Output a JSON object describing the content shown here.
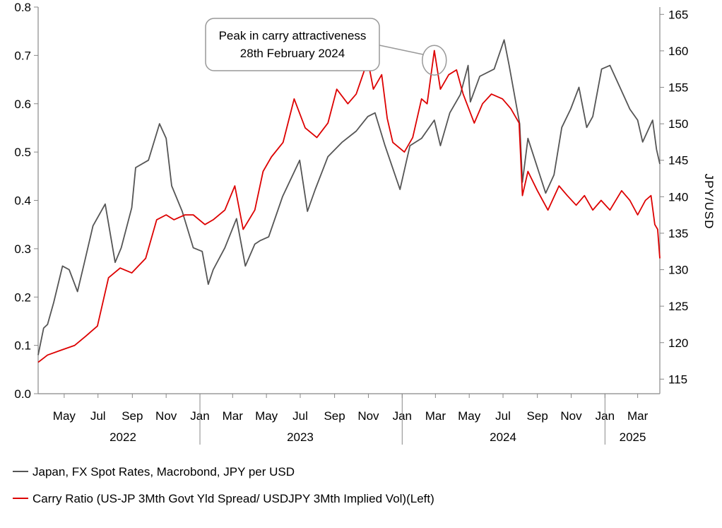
{
  "chart_data": {
    "type": "line",
    "title": "",
    "left_axis": {
      "label": "",
      "range": [
        0.0,
        0.8
      ],
      "ticks": [
        "0.0",
        "0.1",
        "0.2",
        "0.3",
        "0.4",
        "0.5",
        "0.6",
        "0.7",
        "0.8"
      ]
    },
    "right_axis": {
      "label": "JPY/USD",
      "range": [
        113,
        166
      ],
      "ticks": [
        "115",
        "120",
        "125",
        "130",
        "135",
        "140",
        "145",
        "150",
        "155",
        "160",
        "165"
      ]
    },
    "x_axis": {
      "start": "2022-03-15",
      "end": "2025-04-10",
      "month_ticks": [
        {
          "date": "2022-05-01",
          "label": "May"
        },
        {
          "date": "2022-07-01",
          "label": "Jul"
        },
        {
          "date": "2022-09-01",
          "label": "Sep"
        },
        {
          "date": "2022-11-01",
          "label": "Nov"
        },
        {
          "date": "2023-01-01",
          "label": "Jan"
        },
        {
          "date": "2023-03-01",
          "label": "Mar"
        },
        {
          "date": "2023-05-01",
          "label": "May"
        },
        {
          "date": "2023-07-01",
          "label": "Jul"
        },
        {
          "date": "2023-09-01",
          "label": "Sep"
        },
        {
          "date": "2023-11-01",
          "label": "Nov"
        },
        {
          "date": "2024-01-01",
          "label": "Jan"
        },
        {
          "date": "2024-03-01",
          "label": "Mar"
        },
        {
          "date": "2024-05-01",
          "label": "May"
        },
        {
          "date": "2024-07-01",
          "label": "Jul"
        },
        {
          "date": "2024-09-01",
          "label": "Sep"
        },
        {
          "date": "2024-11-01",
          "label": "Nov"
        },
        {
          "date": "2025-01-01",
          "label": "Jan"
        },
        {
          "date": "2025-03-01",
          "label": "Mar"
        }
      ],
      "year_labels": [
        {
          "date": "2022-08-15",
          "label": "2022"
        },
        {
          "date": "2023-07-01",
          "label": "2023"
        },
        {
          "date": "2024-07-01",
          "label": "2024"
        },
        {
          "date": "2025-02-20",
          "label": "2025"
        }
      ],
      "year_separators": [
        "2023-01-01",
        "2024-01-01",
        "2025-01-01"
      ]
    },
    "series": [
      {
        "name": "Japan, FX Spot Rates, Macrobond, JPY per USD",
        "axis": "right",
        "color": "#555555",
        "points": [
          [
            "2022-03-15",
            118.3
          ],
          [
            "2022-03-25",
            122.0
          ],
          [
            "2022-04-01",
            122.5
          ],
          [
            "2022-04-12",
            125.5
          ],
          [
            "2022-04-28",
            130.5
          ],
          [
            "2022-05-10",
            130.0
          ],
          [
            "2022-05-25",
            127.0
          ],
          [
            "2022-06-05",
            130.5
          ],
          [
            "2022-06-22",
            136.0
          ],
          [
            "2022-07-14",
            139.0
          ],
          [
            "2022-08-01",
            131.0
          ],
          [
            "2022-08-12",
            133.0
          ],
          [
            "2022-08-31",
            138.5
          ],
          [
            "2022-09-07",
            144.0
          ],
          [
            "2022-09-30",
            145.0
          ],
          [
            "2022-10-20",
            150.0
          ],
          [
            "2022-11-01",
            148.0
          ],
          [
            "2022-11-11",
            141.5
          ],
          [
            "2022-11-30",
            138.0
          ],
          [
            "2022-12-20",
            133.0
          ],
          [
            "2023-01-05",
            132.5
          ],
          [
            "2023-01-16",
            128.0
          ],
          [
            "2023-01-25",
            130.0
          ],
          [
            "2023-02-15",
            133.0
          ],
          [
            "2023-03-08",
            137.0
          ],
          [
            "2023-03-24",
            130.5
          ],
          [
            "2023-04-10",
            133.5
          ],
          [
            "2023-04-20",
            134.0
          ],
          [
            "2023-05-05",
            134.5
          ],
          [
            "2023-05-30",
            140.0
          ],
          [
            "2023-06-30",
            145.0
          ],
          [
            "2023-07-14",
            138.0
          ],
          [
            "2023-07-28",
            141.0
          ],
          [
            "2023-08-20",
            145.5
          ],
          [
            "2023-09-15",
            147.5
          ],
          [
            "2023-10-10",
            149.0
          ],
          [
            "2023-10-31",
            151.0
          ],
          [
            "2023-11-13",
            151.5
          ],
          [
            "2023-12-01",
            147.0
          ],
          [
            "2023-12-28",
            141.0
          ],
          [
            "2024-01-15",
            147.0
          ],
          [
            "2024-02-05",
            148.0
          ],
          [
            "2024-02-28",
            150.5
          ],
          [
            "2024-03-10",
            147.0
          ],
          [
            "2024-03-27",
            151.5
          ],
          [
            "2024-04-15",
            154.0
          ],
          [
            "2024-04-29",
            158.0
          ],
          [
            "2024-05-03",
            153.0
          ],
          [
            "2024-05-20",
            156.5
          ],
          [
            "2024-06-15",
            157.5
          ],
          [
            "2024-07-03",
            161.5
          ],
          [
            "2024-07-12",
            158.0
          ],
          [
            "2024-07-31",
            150.0
          ],
          [
            "2024-08-05",
            142.0
          ],
          [
            "2024-08-15",
            148.0
          ],
          [
            "2024-09-16",
            140.5
          ],
          [
            "2024-10-01",
            143.0
          ],
          [
            "2024-10-15",
            149.5
          ],
          [
            "2024-10-31",
            152.0
          ],
          [
            "2024-11-15",
            155.0
          ],
          [
            "2024-11-29",
            149.5
          ],
          [
            "2024-12-10",
            151.0
          ],
          [
            "2024-12-26",
            157.5
          ],
          [
            "2025-01-10",
            158.0
          ],
          [
            "2025-01-31",
            154.5
          ],
          [
            "2025-02-15",
            152.0
          ],
          [
            "2025-03-01",
            150.5
          ],
          [
            "2025-03-10",
            147.5
          ],
          [
            "2025-03-28",
            150.5
          ],
          [
            "2025-04-04",
            146.5
          ],
          [
            "2025-04-10",
            144.5
          ]
        ]
      },
      {
        "name": "Carry Ratio (US-JP 3Mth Govt Yld Spread/ USDJPY 3Mth Implied Vol)(Left)",
        "axis": "left",
        "color": "#dd0000",
        "points": [
          [
            "2022-03-15",
            0.065
          ],
          [
            "2022-04-01",
            0.08
          ],
          [
            "2022-04-25",
            0.09
          ],
          [
            "2022-05-20",
            0.1
          ],
          [
            "2022-06-10",
            0.12
          ],
          [
            "2022-06-30",
            0.14
          ],
          [
            "2022-07-20",
            0.24
          ],
          [
            "2022-08-10",
            0.26
          ],
          [
            "2022-08-31",
            0.25
          ],
          [
            "2022-09-25",
            0.28
          ],
          [
            "2022-10-15",
            0.36
          ],
          [
            "2022-11-01",
            0.37
          ],
          [
            "2022-11-15",
            0.36
          ],
          [
            "2022-12-05",
            0.37
          ],
          [
            "2022-12-20",
            0.37
          ],
          [
            "2023-01-10",
            0.35
          ],
          [
            "2023-01-25",
            0.36
          ],
          [
            "2023-02-15",
            0.38
          ],
          [
            "2023-03-05",
            0.43
          ],
          [
            "2023-03-20",
            0.34
          ],
          [
            "2023-04-10",
            0.38
          ],
          [
            "2023-04-25",
            0.46
          ],
          [
            "2023-05-10",
            0.49
          ],
          [
            "2023-05-31",
            0.52
          ],
          [
            "2023-06-20",
            0.61
          ],
          [
            "2023-07-10",
            0.55
          ],
          [
            "2023-07-31",
            0.53
          ],
          [
            "2023-08-20",
            0.56
          ],
          [
            "2023-09-05",
            0.63
          ],
          [
            "2023-09-25",
            0.6
          ],
          [
            "2023-10-10",
            0.62
          ],
          [
            "2023-10-31",
            0.69
          ],
          [
            "2023-11-10",
            0.63
          ],
          [
            "2023-11-25",
            0.66
          ],
          [
            "2023-12-05",
            0.57
          ],
          [
            "2023-12-15",
            0.52
          ],
          [
            "2024-01-05",
            0.5
          ],
          [
            "2024-01-20",
            0.53
          ],
          [
            "2024-02-05",
            0.61
          ],
          [
            "2024-02-15",
            0.6
          ],
          [
            "2024-02-28",
            0.71
          ],
          [
            "2024-03-10",
            0.63
          ],
          [
            "2024-03-25",
            0.66
          ],
          [
            "2024-04-08",
            0.67
          ],
          [
            "2024-04-20",
            0.62
          ],
          [
            "2024-05-10",
            0.56
          ],
          [
            "2024-05-25",
            0.6
          ],
          [
            "2024-06-10",
            0.62
          ],
          [
            "2024-06-30",
            0.61
          ],
          [
            "2024-07-15",
            0.59
          ],
          [
            "2024-07-30",
            0.56
          ],
          [
            "2024-08-05",
            0.41
          ],
          [
            "2024-08-15",
            0.46
          ],
          [
            "2024-09-01",
            0.42
          ],
          [
            "2024-09-20",
            0.38
          ],
          [
            "2024-10-10",
            0.43
          ],
          [
            "2024-10-25",
            0.41
          ],
          [
            "2024-11-10",
            0.39
          ],
          [
            "2024-11-25",
            0.41
          ],
          [
            "2024-12-10",
            0.38
          ],
          [
            "2024-12-25",
            0.4
          ],
          [
            "2025-01-10",
            0.38
          ],
          [
            "2025-01-31",
            0.42
          ],
          [
            "2025-02-15",
            0.4
          ],
          [
            "2025-03-01",
            0.37
          ],
          [
            "2025-03-15",
            0.4
          ],
          [
            "2025-03-25",
            0.41
          ],
          [
            "2025-04-01",
            0.35
          ],
          [
            "2025-04-06",
            0.34
          ],
          [
            "2025-04-10",
            0.28
          ]
        ]
      }
    ],
    "annotation": {
      "lines": [
        "Peak in carry attractiveness",
        "28th February 2024"
      ],
      "target_date": "2024-02-28",
      "target_value": 0.69
    },
    "legend": {
      "placement": "bottom-left",
      "entries": [
        {
          "label": "Japan, FX Spot Rates, Macrobond, JPY per USD",
          "color": "#555555"
        },
        {
          "label": "Carry Ratio (US-JP 3Mth Govt Yld Spread/ USDJPY 3Mth Implied Vol)(Left)",
          "color": "#dd0000"
        }
      ]
    },
    "grid": false
  }
}
